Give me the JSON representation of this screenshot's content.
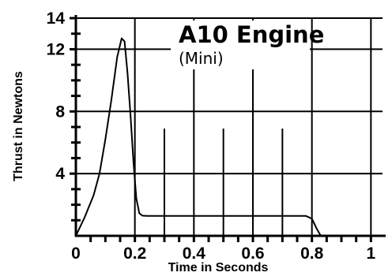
{
  "chart_data": {
    "type": "line",
    "title": "A10 Engine",
    "subtitle": "(Mini)",
    "xlabel": "Time in Seconds",
    "ylabel": "Thrust in Newtons",
    "xlim": [
      0,
      1.05
    ],
    "ylim": [
      0,
      14
    ],
    "x_ticks": [
      0,
      0.2,
      0.4,
      0.6,
      0.8,
      1
    ],
    "x_tick_labels": [
      "0",
      "0.2",
      "0.4",
      "0.6",
      "0.8",
      "1"
    ],
    "y_ticks": [
      4,
      8,
      12,
      14
    ],
    "y_tick_labels": [
      "4",
      "8",
      "12",
      "14"
    ],
    "grid": true,
    "series": [
      {
        "x": [
          0,
          0.03,
          0.06,
          0.08,
          0.1,
          0.12,
          0.14,
          0.155,
          0.165,
          0.175,
          0.185,
          0.195,
          0.205,
          0.215,
          0.225,
          0.24,
          0.3,
          0.4,
          0.5,
          0.6,
          0.7,
          0.78,
          0.8,
          0.815,
          0.83
        ],
        "y": [
          0,
          1.2,
          2.6,
          4.0,
          6.2,
          8.7,
          11.5,
          12.7,
          12.5,
          10.5,
          7.8,
          4.8,
          2.4,
          1.45,
          1.3,
          1.28,
          1.28,
          1.28,
          1.28,
          1.28,
          1.28,
          1.28,
          1.1,
          0.5,
          0
        ]
      }
    ]
  }
}
